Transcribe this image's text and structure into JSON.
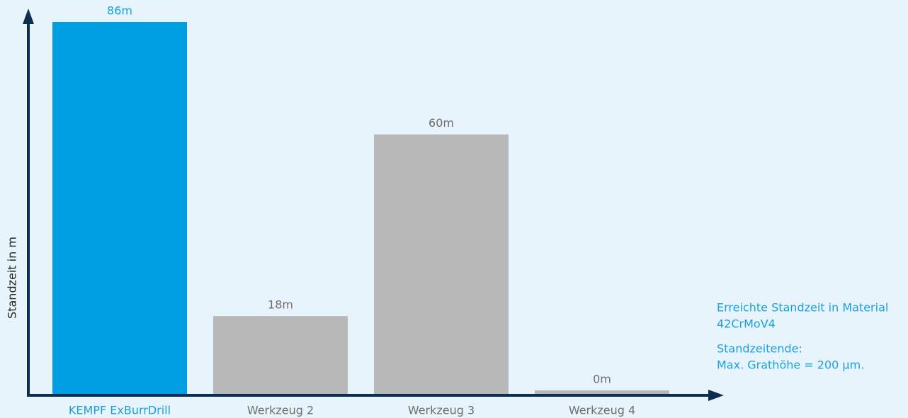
{
  "chart_data": {
    "type": "bar",
    "y_label": "Standzeit in m",
    "categories": [
      "KEMPF ExBurrDrill",
      "Werkzeug 2",
      "Werkzeug 3",
      "Werkzeug 4"
    ],
    "values": [
      86,
      18,
      60,
      0
    ],
    "value_labels": [
      "86m",
      "18m",
      "60m",
      "0m"
    ],
    "colors": [
      "#009fe3",
      "#b8b8b8",
      "#b8b8b8",
      "#b8b8b8"
    ],
    "label_colors": [
      "#1a9fe0",
      "#6e6e6e",
      "#6e6e6e",
      "#6e6e6e"
    ],
    "ylim": [
      0,
      86
    ],
    "annotations": [
      "Erreichte Standzeit in Material",
      "42CrMoV4",
      "Standzeitende:",
      "Max. Grathöhe = 200 µm."
    ]
  }
}
